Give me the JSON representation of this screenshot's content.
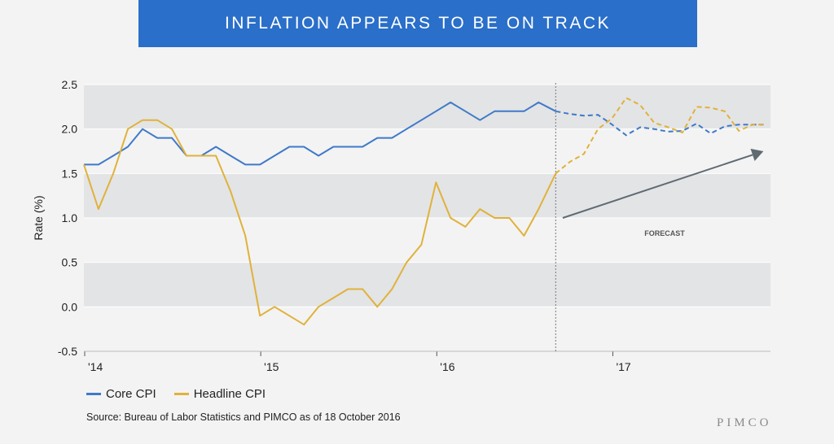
{
  "title": "INFLATION APPEARS TO BE ON TRACK",
  "source": "Source: Bureau of Labor Statistics and PIMCO as of 18 October 2016",
  "brand": "PIMCO",
  "chart_data": {
    "type": "line",
    "title": "INFLATION APPEARS TO BE ON TRACK",
    "xlabel": "",
    "ylabel": "Rate (%)",
    "ylim": [
      -0.5,
      2.5
    ],
    "yticks": [
      -0.5,
      0.0,
      0.5,
      1.0,
      1.5,
      2.0,
      2.5
    ],
    "ytick_labels": [
      "-0.5",
      "0.0",
      "0.5",
      "1.0",
      "1.5",
      "2.0",
      "2.5"
    ],
    "xlim": [
      2014.0,
      2017.9
    ],
    "xticks": [
      2014,
      2015,
      2016,
      2017
    ],
    "xtick_labels": [
      "'14",
      "'15",
      "'16",
      "'17"
    ],
    "forecast_start": 2016.68,
    "annotation": "FORECAST",
    "colors": {
      "core": "#3f79c9",
      "headline": "#e0b23a",
      "arrow": "#5f6a72",
      "divider": "#777777"
    },
    "series": [
      {
        "name": "Core CPI",
        "color": "#3f79c9",
        "x": [
          2014.0,
          2014.083,
          2014.167,
          2014.25,
          2014.333,
          2014.417,
          2014.5,
          2014.583,
          2014.667,
          2014.75,
          2014.833,
          2014.917,
          2015.0,
          2015.083,
          2015.167,
          2015.25,
          2015.333,
          2015.417,
          2015.5,
          2015.583,
          2015.667,
          2015.75,
          2015.833,
          2015.917,
          2016.0,
          2016.083,
          2016.167,
          2016.25,
          2016.333,
          2016.417,
          2016.5,
          2016.583,
          2016.68
        ],
        "values": [
          1.6,
          1.6,
          1.7,
          1.8,
          2.0,
          1.9,
          1.9,
          1.7,
          1.7,
          1.8,
          1.7,
          1.6,
          1.6,
          1.7,
          1.8,
          1.8,
          1.7,
          1.8,
          1.8,
          1.8,
          1.9,
          1.9,
          2.0,
          2.1,
          2.2,
          2.3,
          2.2,
          2.1,
          2.2,
          2.2,
          2.2,
          2.3,
          2.2
        ],
        "forecast_x": [
          2016.68,
          2016.76,
          2016.84,
          2016.92,
          2017.0,
          2017.08,
          2017.16,
          2017.24,
          2017.32,
          2017.4,
          2017.48,
          2017.56,
          2017.64,
          2017.72,
          2017.8,
          2017.86
        ],
        "forecast_values": [
          2.2,
          2.17,
          2.15,
          2.16,
          2.05,
          1.93,
          2.02,
          2.0,
          1.97,
          1.98,
          2.06,
          1.95,
          2.03,
          2.05,
          2.05,
          2.05
        ]
      },
      {
        "name": "Headline CPI",
        "color": "#e0b23a",
        "x": [
          2014.0,
          2014.083,
          2014.167,
          2014.25,
          2014.333,
          2014.417,
          2014.5,
          2014.583,
          2014.667,
          2014.75,
          2014.833,
          2014.917,
          2015.0,
          2015.083,
          2015.167,
          2015.25,
          2015.333,
          2015.417,
          2015.5,
          2015.583,
          2015.667,
          2015.75,
          2015.833,
          2015.917,
          2016.0,
          2016.083,
          2016.167,
          2016.25,
          2016.333,
          2016.417,
          2016.5,
          2016.583,
          2016.68
        ],
        "values": [
          1.6,
          1.1,
          1.5,
          2.0,
          2.1,
          2.1,
          2.0,
          1.7,
          1.7,
          1.7,
          1.3,
          0.8,
          -0.1,
          0.0,
          -0.1,
          -0.2,
          0.0,
          0.1,
          0.2,
          0.2,
          0.0,
          0.2,
          0.5,
          0.7,
          1.4,
          1.0,
          0.9,
          1.1,
          1.0,
          1.0,
          0.8,
          1.1,
          1.5
        ],
        "forecast_x": [
          2016.68,
          2016.76,
          2016.84,
          2016.92,
          2017.0,
          2017.08,
          2017.16,
          2017.24,
          2017.32,
          2017.4,
          2017.48,
          2017.56,
          2017.64,
          2017.72,
          2017.8,
          2017.86
        ],
        "forecast_values": [
          1.5,
          1.63,
          1.72,
          2.0,
          2.12,
          2.35,
          2.27,
          2.07,
          2.02,
          1.96,
          2.25,
          2.24,
          2.2,
          1.98,
          2.05,
          2.05
        ]
      }
    ],
    "trend_arrow": {
      "from": [
        2016.72,
        1.0
      ],
      "to": [
        2017.86,
        1.75
      ]
    },
    "legend": "bottom-left"
  }
}
